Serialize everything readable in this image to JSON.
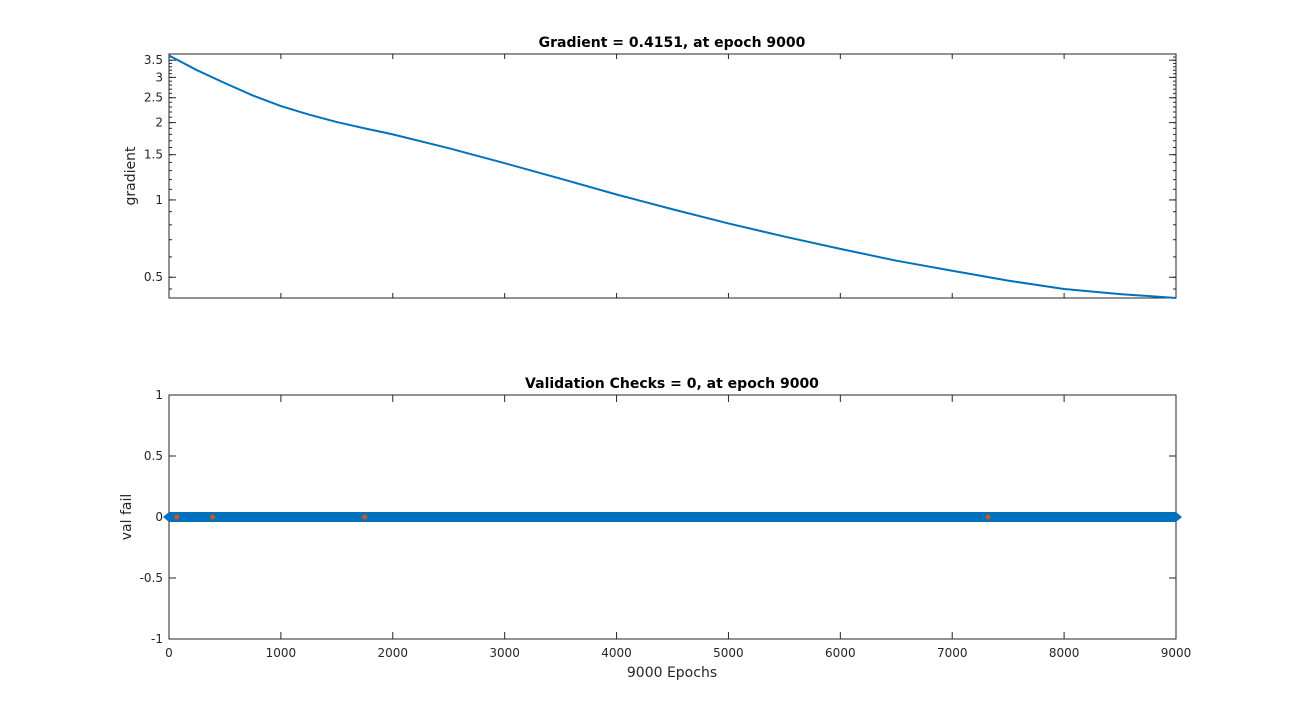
{
  "chart_data": [
    {
      "type": "line",
      "title": "Gradient = 0.4151, at epoch 9000",
      "xlabel": "",
      "ylabel": "gradient",
      "yscale": "log",
      "xlim": [
        0,
        9000
      ],
      "ylim": [
        0.4151,
        3.7
      ],
      "xticks": [
        0,
        1000,
        2000,
        3000,
        4000,
        5000,
        6000,
        7000,
        8000,
        9000
      ],
      "xtick_labels_visible": false,
      "yticks": [
        0.5,
        1,
        1.5,
        2,
        2.5,
        3,
        3.5
      ],
      "ytick_labels": [
        "0.5",
        "1",
        "1.5",
        "2",
        "2.5",
        "3",
        "3.5"
      ],
      "grid": false,
      "color": "#0072BD",
      "series": [
        {
          "x": [
            0,
            250,
            500,
            750,
            1000,
            1250,
            1500,
            1750,
            2000,
            2500,
            3000,
            3500,
            4000,
            4500,
            5000,
            5500,
            6000,
            6500,
            7000,
            7500,
            8000,
            8500,
            9000
          ],
          "values": [
            3.65,
            3.2,
            2.85,
            2.55,
            2.32,
            2.15,
            2.01,
            1.9,
            1.8,
            1.59,
            1.39,
            1.21,
            1.05,
            0.92,
            0.81,
            0.72,
            0.645,
            0.58,
            0.53,
            0.485,
            0.45,
            0.43,
            0.4151
          ]
        }
      ]
    },
    {
      "type": "scatter",
      "title": "Validation Checks = 0, at epoch 9000",
      "xlabel": "9000 Epochs",
      "ylabel": "val fail",
      "xlim": [
        0,
        9000
      ],
      "ylim": [
        -1,
        1
      ],
      "xticks": [
        0,
        1000,
        2000,
        3000,
        4000,
        5000,
        6000,
        7000,
        8000,
        9000
      ],
      "xtick_labels": [
        "0",
        "1000",
        "2000",
        "3000",
        "4000",
        "5000",
        "6000",
        "7000",
        "8000",
        "9000"
      ],
      "yticks": [
        -1,
        -0.5,
        0,
        0.5,
        1
      ],
      "ytick_labels": [
        "-1",
        "-0.5",
        "0",
        "0.5",
        "1"
      ],
      "grid": false,
      "series": [
        {
          "marker": "diamond",
          "color": "#0072BD",
          "x_range": [
            0,
            9000
          ],
          "value": 0
        },
        {
          "marker": "point",
          "color": "#D95319",
          "x": [
            70,
            390,
            1750,
            7320
          ],
          "values": [
            0,
            0,
            0,
            0
          ]
        }
      ]
    }
  ]
}
